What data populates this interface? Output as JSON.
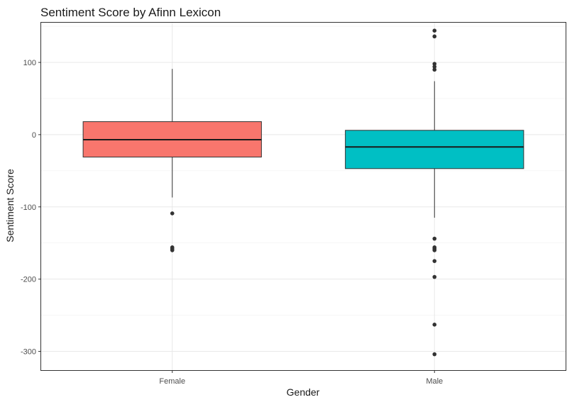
{
  "chart_data": {
    "type": "box",
    "title": "Sentiment Score by Afinn Lexicon",
    "xlabel": "Gender",
    "ylabel": "Sentiment Score",
    "categories": [
      "Female",
      "Male"
    ],
    "ylim": [
      -326,
      155
    ],
    "y_ticks": [
      -300,
      -200,
      -100,
      0,
      100
    ],
    "y_tick_labels": [
      "-300",
      "-200",
      "-100",
      "0",
      "100"
    ],
    "grid": true,
    "legend": "none",
    "boxes": [
      {
        "category": "Female",
        "color": "#F8766D",
        "whisker_low": -87,
        "q1": -31,
        "median": -7,
        "q3": 18,
        "whisker_high": 91,
        "outliers": [
          -109,
          -156,
          -158,
          -160
        ]
      },
      {
        "category": "Male",
        "color": "#00BFC4",
        "whisker_low": -115,
        "q1": -47,
        "median": -17,
        "q3": 6,
        "whisker_high": 74,
        "outliers": [
          144,
          136,
          98,
          94,
          90,
          -144,
          -156,
          -158,
          -160,
          -175,
          -197,
          -263,
          -304
        ]
      }
    ]
  }
}
